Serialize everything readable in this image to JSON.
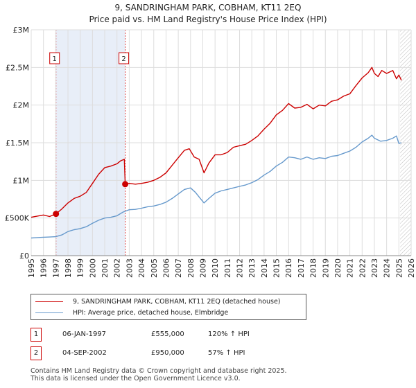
{
  "title_line1": "9, SANDRINGHAM PARK, COBHAM, KT11 2EQ",
  "title_line2": "Price paid vs. HM Land Registry's House Price Index (HPI)",
  "colors": {
    "property": "#cc0000",
    "hpi": "#6699cc",
    "shade": "#e8eef8",
    "grid": "#dddddd"
  },
  "legend": {
    "property_label": "9, SANDRINGHAM PARK, COBHAM, KT11 2EQ (detached house)",
    "hpi_label": "HPI: Average price, detached house, Elmbridge"
  },
  "sales": [
    {
      "num": "1",
      "date": "06-JAN-1997",
      "price": "£555,000",
      "hpi": "120% ↑ HPI"
    },
    {
      "num": "2",
      "date": "04-SEP-2002",
      "price": "£950,000",
      "hpi": "57% ↑ HPI"
    }
  ],
  "footer": {
    "line1": "Contains HM Land Registry data © Crown copyright and database right 2025.",
    "line2": "This data is licensed under the Open Government Licence v3.0."
  },
  "chart_data": {
    "type": "line",
    "title": "9, SANDRINGHAM PARK, COBHAM, KT11 2EQ — Price paid vs. HM Land Registry's House Price Index (HPI)",
    "xlabel": "",
    "ylabel": "",
    "xlim": [
      1995,
      2026
    ],
    "ylim": [
      0,
      3000000
    ],
    "x_ticks": [
      1995,
      1996,
      1997,
      1998,
      1999,
      2000,
      2001,
      2002,
      2003,
      2004,
      2005,
      2006,
      2007,
      2008,
      2009,
      2010,
      2011,
      2012,
      2013,
      2014,
      2015,
      2016,
      2017,
      2018,
      2019,
      2020,
      2021,
      2022,
      2023,
      2024,
      2025,
      2026
    ],
    "y_ticks": [
      {
        "value": 0,
        "label": "£0"
      },
      {
        "value": 500000,
        "label": "£500K"
      },
      {
        "value": 1000000,
        "label": "£1M"
      },
      {
        "value": 1500000,
        "label": "£1.5M"
      },
      {
        "value": 2000000,
        "label": "£2M"
      },
      {
        "value": 2500000,
        "label": "£2.5M"
      },
      {
        "value": 3000000,
        "label": "£3M"
      }
    ],
    "shaded_range": [
      1997.02,
      2002.67
    ],
    "hatched_from": 2025.1,
    "markers": [
      {
        "label": "1",
        "x": 1997.02,
        "y": 555000
      },
      {
        "label": "2",
        "x": 2002.67,
        "y": 950000
      }
    ],
    "series": [
      {
        "name": "9, SANDRINGHAM PARK, COBHAM, KT11 2EQ (detached house)",
        "color": "#cc0000",
        "x": [
          1995.0,
          1995.5,
          1996.0,
          1996.5,
          1997.02,
          1997.5,
          1998.0,
          1998.5,
          1999.0,
          1999.5,
          2000.0,
          2000.5,
          2001.0,
          2001.5,
          2002.0,
          2002.3,
          2002.6,
          2002.67,
          2003.0,
          2003.5,
          2004.0,
          2004.5,
          2005.0,
          2005.5,
          2006.0,
          2006.5,
          2007.0,
          2007.5,
          2007.9,
          2008.3,
          2008.7,
          2009.1,
          2009.5,
          2010.0,
          2010.5,
          2011.0,
          2011.5,
          2012.0,
          2012.5,
          2013.0,
          2013.5,
          2014.0,
          2014.5,
          2015.0,
          2015.5,
          2016.0,
          2016.5,
          2017.0,
          2017.5,
          2018.0,
          2018.5,
          2019.0,
          2019.5,
          2020.0,
          2020.5,
          2021.0,
          2021.5,
          2022.0,
          2022.5,
          2022.8,
          2023.0,
          2023.3,
          2023.6,
          2024.0,
          2024.5,
          2024.8,
          2025.0,
          2025.2
        ],
        "values": [
          510000,
          525000,
          540000,
          520000,
          555000,
          620000,
          700000,
          760000,
          790000,
          840000,
          960000,
          1080000,
          1170000,
          1190000,
          1220000,
          1260000,
          1280000,
          950000,
          960000,
          950000,
          960000,
          975000,
          1000000,
          1040000,
          1100000,
          1200000,
          1300000,
          1400000,
          1420000,
          1310000,
          1280000,
          1100000,
          1230000,
          1340000,
          1340000,
          1370000,
          1440000,
          1460000,
          1480000,
          1530000,
          1590000,
          1680000,
          1760000,
          1870000,
          1930000,
          2020000,
          1960000,
          1970000,
          2010000,
          1950000,
          2000000,
          1990000,
          2050000,
          2070000,
          2120000,
          2150000,
          2260000,
          2360000,
          2430000,
          2500000,
          2420000,
          2380000,
          2460000,
          2420000,
          2460000,
          2350000,
          2400000,
          2330000
        ]
      },
      {
        "name": "HPI: Average price, detached house, Elmbridge",
        "color": "#6699cc",
        "x": [
          1995.0,
          1995.5,
          1996.0,
          1996.5,
          1997.0,
          1997.5,
          1998.0,
          1998.5,
          1999.0,
          1999.5,
          2000.0,
          2000.5,
          2001.0,
          2001.5,
          2002.0,
          2002.5,
          2003.0,
          2003.5,
          2004.0,
          2004.5,
          2005.0,
          2005.5,
          2006.0,
          2006.5,
          2007.0,
          2007.5,
          2008.0,
          2008.4,
          2008.8,
          2009.1,
          2009.5,
          2010.0,
          2010.5,
          2011.0,
          2011.5,
          2012.0,
          2012.5,
          2013.0,
          2013.5,
          2014.0,
          2014.5,
          2015.0,
          2015.5,
          2016.0,
          2016.5,
          2017.0,
          2017.5,
          2018.0,
          2018.5,
          2019.0,
          2019.5,
          2020.0,
          2020.5,
          2021.0,
          2021.5,
          2022.0,
          2022.5,
          2022.8,
          2023.0,
          2023.5,
          2024.0,
          2024.5,
          2024.8,
          2025.0,
          2025.2
        ],
        "values": [
          235000,
          240000,
          245000,
          248000,
          252000,
          275000,
          320000,
          345000,
          360000,
          385000,
          430000,
          470000,
          500000,
          510000,
          530000,
          580000,
          610000,
          615000,
          630000,
          650000,
          660000,
          680000,
          710000,
          760000,
          820000,
          880000,
          900000,
          840000,
          760000,
          700000,
          760000,
          830000,
          860000,
          880000,
          900000,
          920000,
          940000,
          970000,
          1010000,
          1070000,
          1120000,
          1190000,
          1240000,
          1310000,
          1300000,
          1280000,
          1310000,
          1280000,
          1300000,
          1290000,
          1320000,
          1330000,
          1360000,
          1390000,
          1440000,
          1510000,
          1560000,
          1600000,
          1560000,
          1520000,
          1530000,
          1560000,
          1590000,
          1490000,
          1500000
        ]
      }
    ]
  }
}
